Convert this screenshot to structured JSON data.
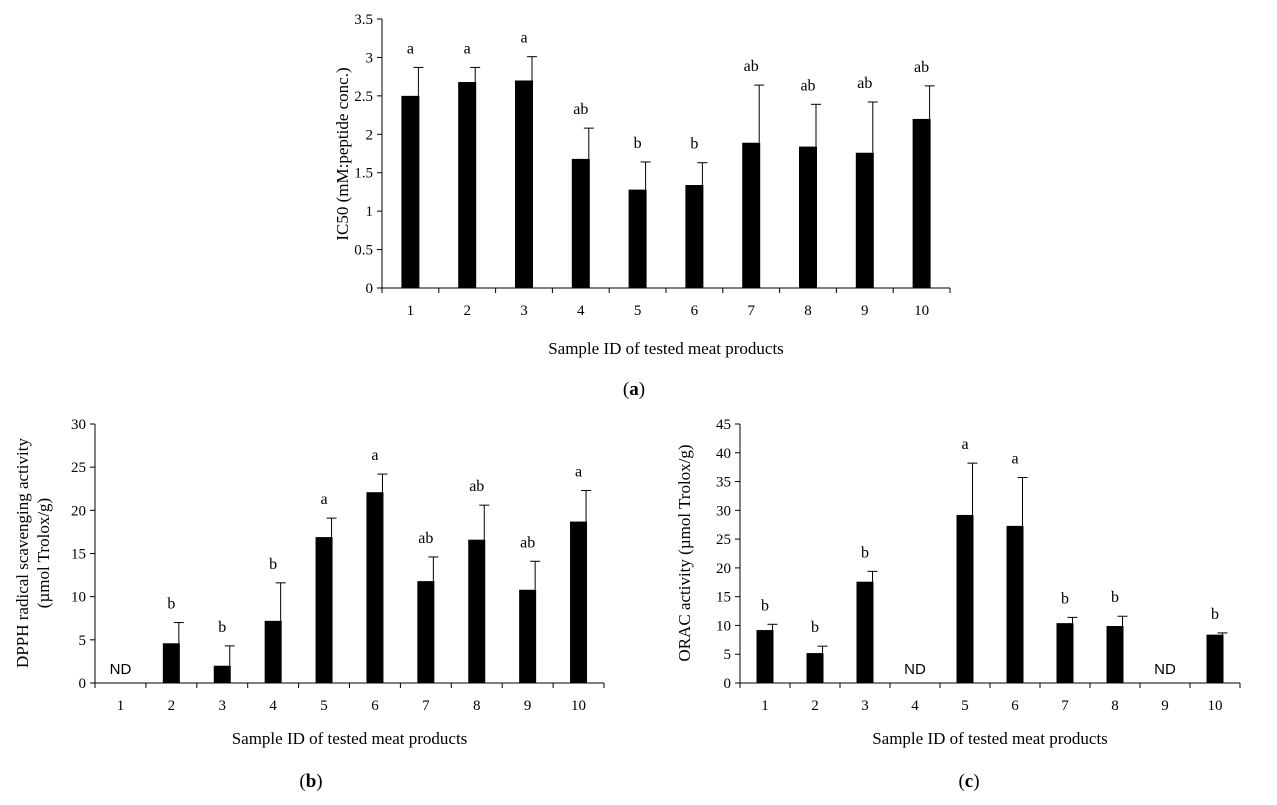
{
  "figure": {
    "panel_labels": [
      "(a)",
      "(b)",
      "(c)"
    ]
  },
  "chart_data": [
    {
      "type": "bar",
      "panel": "(a)",
      "title": "",
      "xlabel": "Sample ID of tested meat products",
      "ylabel": "IC50 (mM:peptide conc.)",
      "ylim": [
        0,
        3.5
      ],
      "yticks": [
        0,
        0.5,
        1,
        1.5,
        2,
        2.5,
        3,
        3.5
      ],
      "ytick_labels": [
        "0",
        "0.5",
        "1",
        "1.5",
        "2",
        "2.5",
        "3",
        "3.5"
      ],
      "categories": [
        "1",
        "2",
        "3",
        "4",
        "5",
        "6",
        "7",
        "8",
        "9",
        "10"
      ],
      "values": [
        2.5,
        2.68,
        2.7,
        1.68,
        1.28,
        1.34,
        1.89,
        1.84,
        1.76,
        2.2
      ],
      "errors": [
        0.37,
        0.19,
        0.31,
        0.4,
        0.36,
        0.29,
        0.75,
        0.55,
        0.66,
        0.43
      ],
      "letters": [
        "a",
        "a",
        "a",
        "ab",
        "b",
        "b",
        "ab",
        "ab",
        "ab",
        "ab"
      ],
      "bar_color": "#000000"
    },
    {
      "type": "bar",
      "panel": "(b)",
      "title": "",
      "xlabel": "Sample ID of tested meat products",
      "ylabel": "DPPH radical scavenging activity",
      "ylabel2": "(µmol Trolox/g)",
      "ylim": [
        0,
        30
      ],
      "yticks": [
        0,
        5,
        10,
        15,
        20,
        25,
        30
      ],
      "ytick_labels": [
        "0",
        "5",
        "10",
        "15",
        "20",
        "25",
        "30"
      ],
      "categories": [
        "1",
        "2",
        "3",
        "4",
        "5",
        "6",
        "7",
        "8",
        "9",
        "10"
      ],
      "values": [
        null,
        4.6,
        2.0,
        7.2,
        16.9,
        22.1,
        11.8,
        16.6,
        10.8,
        18.7
      ],
      "errors": [
        null,
        2.4,
        2.3,
        4.4,
        2.2,
        2.1,
        2.8,
        4.0,
        3.3,
        3.6
      ],
      "letters": [
        "",
        "b",
        "b",
        "b",
        "a",
        "a",
        "ab",
        "ab",
        "ab",
        "a"
      ],
      "nd_text": "ND",
      "bar_color": "#000000"
    },
    {
      "type": "bar",
      "panel": "(c)",
      "title": "",
      "xlabel": "Sample ID of tested meat products",
      "ylabel": "ORAC activity  (µmol Trolox/g)",
      "ylim": [
        0,
        45
      ],
      "yticks": [
        0,
        5,
        10,
        15,
        20,
        25,
        30,
        35,
        40,
        45
      ],
      "ytick_labels": [
        "0",
        "5",
        "10",
        "15",
        "20",
        "25",
        "30",
        "35",
        "40",
        "45"
      ],
      "categories": [
        "1",
        "2",
        "3",
        "4",
        "5",
        "6",
        "7",
        "8",
        "9",
        "10"
      ],
      "values": [
        9.2,
        5.2,
        17.6,
        null,
        29.2,
        27.3,
        10.4,
        9.9,
        null,
        8.4
      ],
      "errors": [
        1.0,
        1.2,
        1.8,
        null,
        9.0,
        8.4,
        1.0,
        1.7,
        null,
        0.3
      ],
      "letters": [
        "b",
        "b",
        "b",
        "",
        "a",
        "a",
        "b",
        "b",
        "",
        "b"
      ],
      "nd_text": "ND",
      "bar_color": "#000000"
    }
  ]
}
